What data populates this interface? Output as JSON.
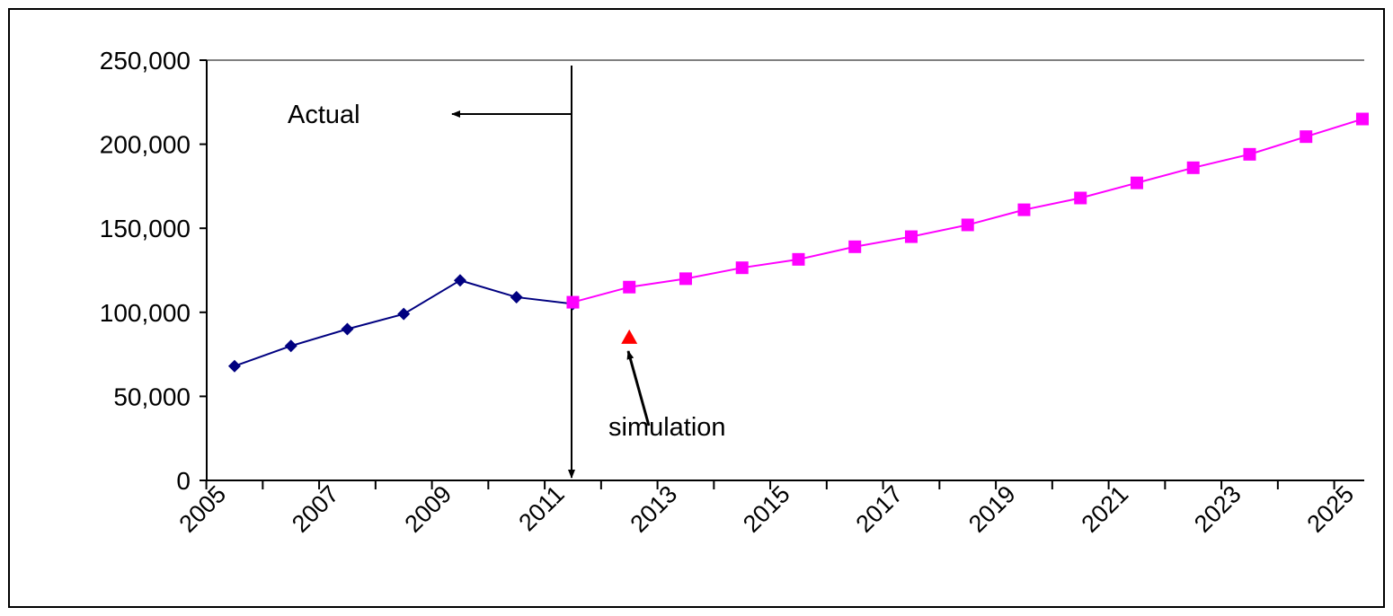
{
  "chart_data": {
    "type": "line",
    "categories": [
      "2005",
      null,
      "2007",
      null,
      "2009",
      null,
      "2011",
      null,
      "2013",
      null,
      "2015",
      null,
      "2017",
      null,
      "2019",
      null,
      "2021",
      null,
      "2023",
      null,
      "2025"
    ],
    "series": [
      {
        "color": "#000080",
        "marker": "diamond",
        "line": true,
        "values": [
          68000,
          80000,
          90000,
          99000,
          119000,
          109000,
          105000,
          null,
          null,
          null,
          null,
          null,
          null,
          null,
          null,
          null,
          null,
          null,
          null,
          null,
          null
        ]
      },
      {
        "color": "#ff00ff",
        "marker": "square",
        "line": true,
        "values": [
          null,
          null,
          null,
          null,
          null,
          null,
          106000,
          115000,
          120000,
          126500,
          131500,
          139000,
          145000,
          152000,
          161000,
          168000,
          177000,
          186000,
          194000,
          204500,
          215000
        ]
      },
      {
        "color": "#ff0000",
        "marker": "triangle",
        "line": false,
        "values": [
          null,
          null,
          null,
          null,
          null,
          null,
          null,
          85000,
          null,
          null,
          null,
          null,
          null,
          null,
          null,
          null,
          null,
          null,
          null,
          null,
          null
        ]
      }
    ],
    "ylim": [
      0,
      250000
    ],
    "yticks": [
      0,
      {
        "value": 50000,
        "label": "50,000"
      },
      {
        "value": 100000,
        "label": "100,000"
      },
      {
        "value": 150000,
        "label": "150,000"
      },
      {
        "value": 200000,
        "label": "200,000"
      },
      {
        "value": 250000,
        "label": "250,000"
      }
    ],
    "grid": false,
    "annotations": [
      "Actual",
      "simulation"
    ]
  }
}
